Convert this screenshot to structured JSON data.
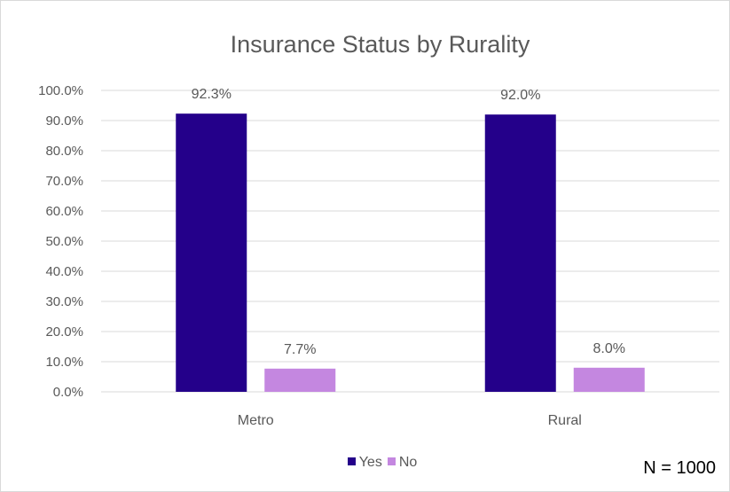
{
  "chart_data": {
    "type": "bar",
    "title": "Insurance Status by Rurality",
    "categories": [
      "Metro",
      "Rural"
    ],
    "series": [
      {
        "name": "Yes",
        "values": [
          92.3,
          92.0
        ],
        "color": "#24008a"
      },
      {
        "name": "No",
        "values": [
          7.7,
          8.0
        ],
        "color": "#c487e0"
      }
    ],
    "data_labels": [
      [
        "92.3%",
        "92.0%"
      ],
      [
        "7.7%",
        "8.0%"
      ]
    ],
    "y_ticks": [
      "0.0%",
      "10.0%",
      "20.0%",
      "30.0%",
      "40.0%",
      "50.0%",
      "60.0%",
      "70.0%",
      "80.0%",
      "90.0%",
      "100.0%"
    ],
    "ylim": [
      0,
      100
    ],
    "grid": true,
    "legend_position": "bottom"
  },
  "footnote": "N = 1000",
  "colors": {
    "gridline": "#d9d9d9",
    "text": "#595959"
  }
}
